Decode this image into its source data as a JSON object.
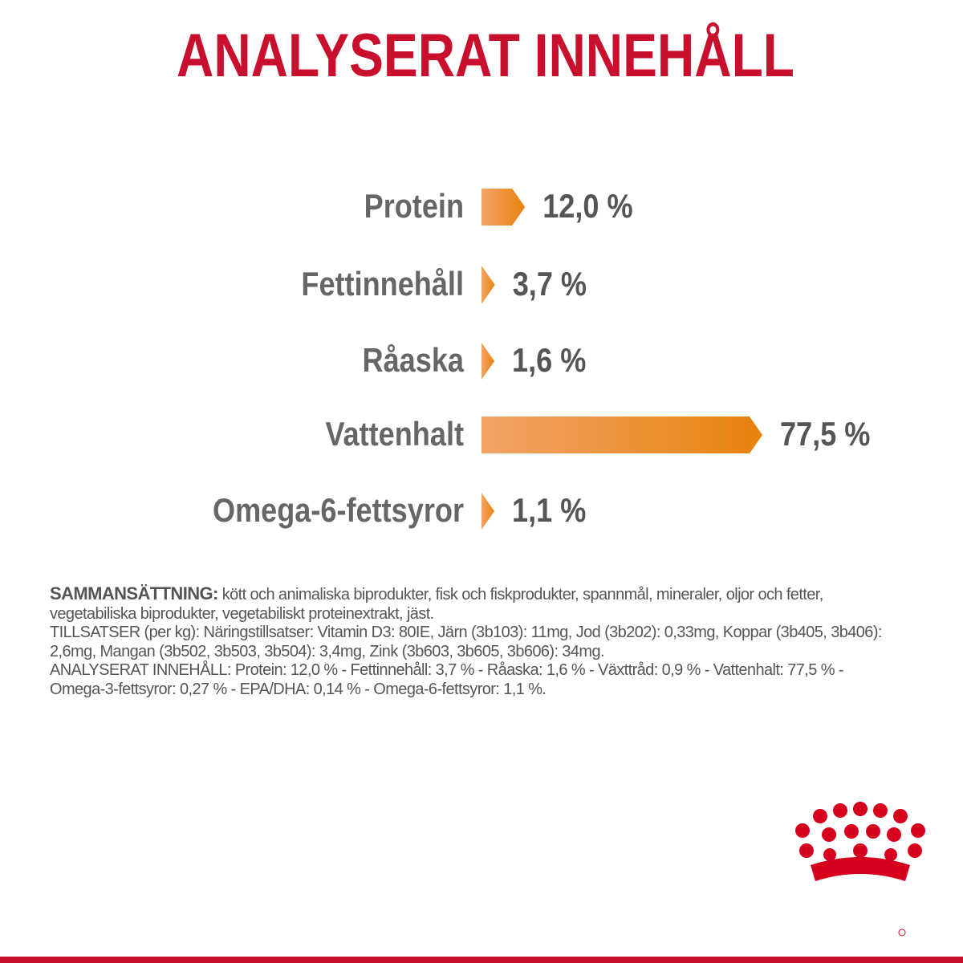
{
  "chart_data": {
    "type": "bar",
    "orientation": "horizontal",
    "title": "ANALYSERAT INNEHÅLL",
    "categories": [
      "Protein",
      "Fettinnehåll",
      "Råaska",
      "Vattenhalt",
      "Omega-6-fettsyror"
    ],
    "values": [
      12.0,
      3.7,
      1.6,
      77.5,
      1.1
    ],
    "value_labels": [
      "12,0 %",
      "3,7 %",
      "1,6 %",
      "77,5 %",
      "1,1 %"
    ],
    "color": "#e8820c"
  },
  "composition": {
    "label": "SAMMANSÄTTNING:",
    "text": "kött och animaliska biprodukter, fisk och fiskprodukter, spannmål, mineraler, oljor och fetter, vegetabiliska biprodukter, vegetabiliskt proteinextrakt, jäst."
  },
  "additives": "TILLSATSER (per kg): Näringstillsatser: Vitamin D3: 80IE, Järn (3b103): 11mg, Jod (3b202): 0,33mg, Koppar (3b405, 3b406): 2,6mg, Mangan (3b502, 3b503, 3b504): 3,4mg, Zink (3b603, 3b605, 3b606): 34mg.",
  "analysis": "ANALYSERAT INNEHÅLL: Protein: 12,0 % - Fettinnehåll: 3,7 % - Råaska: 1,6 % - Växttråd: 0,9 % - Vattenhalt: 77,5 % - Omega-3-fettsyror: 0,27 % - EPA/DHA: 0,14 % - Omega-6-fettsyror: 1,1 %."
}
